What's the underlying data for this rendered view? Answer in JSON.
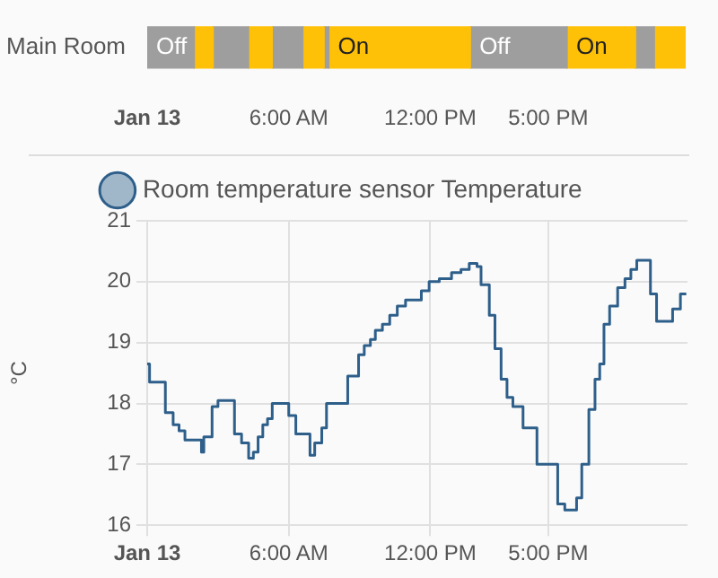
{
  "chart_data": [
    {
      "type": "bar",
      "orientation": "horizontal",
      "stacked": true,
      "categories": [
        "Main Room"
      ],
      "series": [
        {
          "color": "#9e9e9e",
          "values": [
            2.0
          ],
          "value_labels": [
            "Off"
          ]
        },
        {
          "color": "#ffc107",
          "values": [
            0.8
          ],
          "value_labels": [
            null
          ]
        },
        {
          "color": "#9e9e9e",
          "values": [
            1.5
          ],
          "value_labels": [
            null
          ]
        },
        {
          "color": "#ffc107",
          "values": [
            1.0
          ],
          "value_labels": [
            null
          ]
        },
        {
          "color": "#9e9e9e",
          "values": [
            1.3
          ],
          "value_labels": [
            null
          ]
        },
        {
          "color": "#ffc107",
          "values": [
            0.9
          ],
          "value_labels": [
            null
          ]
        },
        {
          "color": "#9e9e9e",
          "values": [
            0.2
          ],
          "value_labels": [
            null
          ]
        },
        {
          "color": "#ffc107",
          "values": [
            6.0
          ],
          "value_labels": [
            "On"
          ]
        },
        {
          "color": "#9e9e9e",
          "values": [
            4.1
          ],
          "value_labels": [
            "Off"
          ]
        },
        {
          "color": "#ffc107",
          "values": [
            2.9
          ],
          "value_labels": [
            "On"
          ]
        },
        {
          "color": "#9e9e9e",
          "values": [
            0.8
          ],
          "value_labels": [
            null
          ]
        },
        {
          "color": "#ffc107",
          "values": [
            1.3
          ],
          "value_labels": [
            null
          ]
        }
      ],
      "xlim": [
        0,
        22.9
      ],
      "xticks": [
        {
          "value": 0,
          "label": "Jan 13"
        },
        {
          "value": 6,
          "label": "6:00 AM"
        },
        {
          "value": 12,
          "label": "12:00 PM"
        },
        {
          "value": 17,
          "label": "5:00 PM"
        }
      ],
      "grid": false,
      "legend": false
    },
    {
      "type": "step",
      "x": [
        0,
        0.1,
        0.77,
        1.1,
        1.35,
        1.6,
        2.3,
        2.4,
        2.75,
        3.0,
        3.7,
        4.0,
        4.3,
        4.5,
        4.7,
        4.9,
        5.1,
        5.3,
        6.0,
        6.3,
        6.9,
        7.1,
        7.4,
        7.6,
        8.5,
        8.96,
        9.2,
        9.46,
        9.67,
        9.97,
        10.28,
        10.6,
        10.95,
        11.62,
        11.95,
        12.38,
        12.9,
        13.3,
        13.65,
        13.98,
        14.15,
        14.5,
        14.74,
        15.0,
        15.25,
        15.5,
        15.93,
        16.52,
        17.4,
        17.7,
        18.2,
        18.42,
        18.72,
        18.98,
        19.18,
        19.36,
        19.6,
        19.94,
        20.25,
        20.5,
        20.75,
        21.33,
        21.59,
        22.27,
        22.6,
        22.85
      ],
      "series": [
        {
          "name": "Room temperature sensor Temperature",
          "color": "#2e5f8a",
          "values": [
            18.65,
            18.35,
            17.85,
            17.65,
            17.55,
            17.4,
            17.2,
            17.45,
            17.95,
            18.05,
            17.5,
            17.35,
            17.1,
            17.2,
            17.45,
            17.65,
            17.75,
            18.0,
            17.8,
            17.5,
            17.15,
            17.35,
            17.6,
            18.0,
            18.45,
            18.8,
            18.95,
            19.05,
            19.2,
            19.3,
            19.45,
            19.6,
            19.7,
            19.85,
            20.0,
            20.05,
            20.15,
            20.2,
            20.3,
            20.25,
            19.95,
            19.45,
            18.9,
            18.4,
            18.1,
            17.95,
            17.6,
            17.0,
            16.35,
            16.25,
            16.45,
            17.0,
            17.9,
            18.4,
            18.65,
            19.3,
            19.6,
            19.9,
            20.05,
            20.2,
            20.35,
            19.8,
            19.35,
            19.55,
            19.8,
            19.8
          ]
        }
      ],
      "ylabel": "°C",
      "xlim": [
        0,
        22.9
      ],
      "xticks": [
        {
          "value": 0,
          "label": "Jan 13"
        },
        {
          "value": 6,
          "label": "6:00 AM"
        },
        {
          "value": 12,
          "label": "12:00 PM"
        },
        {
          "value": 17,
          "label": "5:00 PM"
        }
      ],
      "ylim": [
        16,
        21
      ],
      "yticks": [
        16,
        17,
        18,
        19,
        20,
        21
      ],
      "grid": true,
      "legend": "top"
    }
  ]
}
